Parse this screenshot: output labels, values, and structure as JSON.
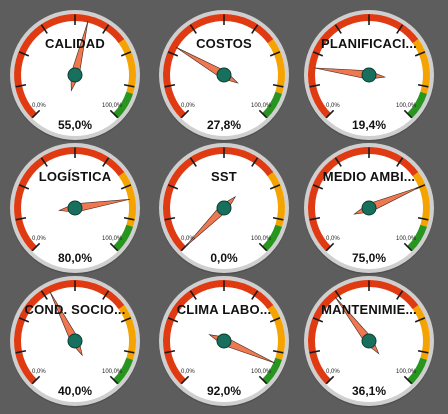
{
  "gauges": [
    {
      "title": "CALIDAD",
      "value": 55.0,
      "value_label": "55,0%",
      "min_label": "0,0%",
      "max_label": "100,0%"
    },
    {
      "title": "COSTOS",
      "value": 27.8,
      "value_label": "27,8%",
      "min_label": "0,0%",
      "max_label": "100,0%"
    },
    {
      "title": "PLANIFICACI...",
      "value": 19.4,
      "value_label": "19,4%",
      "min_label": "0,0%",
      "max_label": "100,0%"
    },
    {
      "title": "LOGÍSTICA",
      "value": 80.0,
      "value_label": "80,0%",
      "min_label": "0,0%",
      "max_label": "100,0%"
    },
    {
      "title": "SST",
      "value": 0.0,
      "value_label": "0,0%",
      "min_label": "0,0%",
      "max_label": "100,0%"
    },
    {
      "title": "MEDIO AMBI...",
      "value": 75.0,
      "value_label": "75,0%",
      "min_label": "0,0%",
      "max_label": "100,0%"
    },
    {
      "title": "COND. SOCIO...",
      "value": 40.0,
      "value_label": "40,0%",
      "min_label": "0,0%",
      "max_label": "100,0%"
    },
    {
      "title": "CLIMA LABO...",
      "value": 92.0,
      "value_label": "92,0%",
      "min_label": "0,0%",
      "max_label": "100,0%"
    },
    {
      "title": "MANTENIMIE...",
      "value": 36.1,
      "value_label": "36,1%",
      "min_label": "0,0%",
      "max_label": "100,0%"
    }
  ],
  "colors": {
    "background": "#5d5d5d",
    "red_band": "#e03a12",
    "orange_band": "#f5a300",
    "green_band": "#27951f",
    "needle": "#f07850",
    "hub": "#17705d",
    "dial": "#ffffff",
    "rim": "#cfcfcf"
  }
}
